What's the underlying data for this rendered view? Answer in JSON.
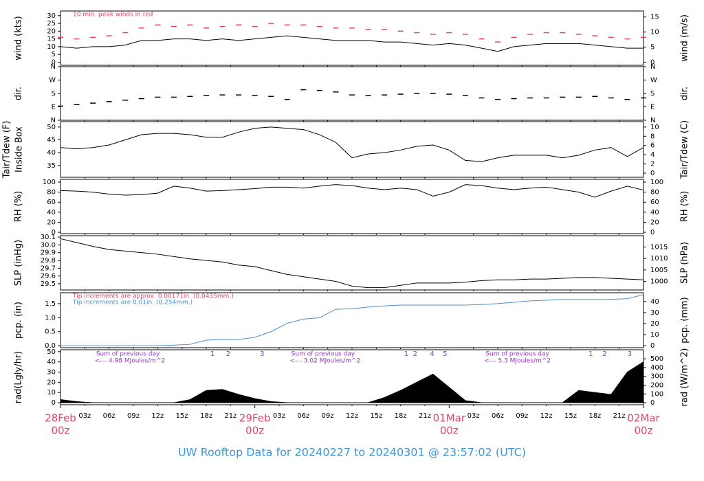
{
  "chart_data": {
    "type": "line",
    "title": "UW Rooftop Data for 20240227  to  20240301 @ 23:57:02  (UTC)",
    "x": [
      0,
      2,
      4,
      6,
      8,
      10,
      12,
      14,
      16,
      18,
      20,
      22,
      24,
      26,
      28,
      30,
      32,
      34,
      36,
      38,
      40,
      42,
      44,
      46,
      48,
      50,
      52,
      54,
      56,
      58,
      60,
      62,
      64,
      66,
      68,
      70,
      72
    ],
    "xlim": [
      0,
      72
    ],
    "xticks": [
      {
        "value": 3,
        "label": "03z"
      },
      {
        "value": 6,
        "label": "06z"
      },
      {
        "value": 9,
        "label": "09z"
      },
      {
        "value": 12,
        "label": "12z"
      },
      {
        "value": 15,
        "label": "15z"
      },
      {
        "value": 18,
        "label": "18z"
      },
      {
        "value": 21,
        "label": "21z"
      },
      {
        "value": 27,
        "label": "03z"
      },
      {
        "value": 30,
        "label": "06z"
      },
      {
        "value": 33,
        "label": "09z"
      },
      {
        "value": 36,
        "label": "12z"
      },
      {
        "value": 39,
        "label": "15z"
      },
      {
        "value": 42,
        "label": "18z"
      },
      {
        "value": 45,
        "label": "21z"
      },
      {
        "value": 51,
        "label": "03z"
      },
      {
        "value": 54,
        "label": "06z"
      },
      {
        "value": 57,
        "label": "09z"
      },
      {
        "value": 60,
        "label": "12z"
      },
      {
        "value": 63,
        "label": "15z"
      },
      {
        "value": 66,
        "label": "18z"
      },
      {
        "value": 69,
        "label": "21z"
      }
    ],
    "day_ticks": [
      {
        "value": 0,
        "label": "28Feb",
        "sub": "00z"
      },
      {
        "value": 24,
        "label": "29Feb",
        "sub": "00z"
      },
      {
        "value": 48,
        "label": "01Mar",
        "sub": "00z"
      },
      {
        "value": 72,
        "label": "02Mar",
        "sub": "00z"
      }
    ],
    "panels": [
      {
        "ylabel": "wind (kts)",
        "y2label": "wind (m/s)",
        "ylim": [
          -2,
          33
        ],
        "yticks": [
          0,
          5,
          10,
          15,
          20,
          25,
          30
        ],
        "y2lim": [
          -1.03,
          16.98
        ],
        "y2ticks": [
          0,
          5,
          10,
          15
        ],
        "series": [
          {
            "style": "dash",
            "color": "#e0436a",
            "values": [
              16,
              15,
              16,
              17,
              19,
              22,
              24,
              23,
              24,
              22,
              23,
              24,
              23,
              25,
              24,
              24,
              23,
              22,
              22,
              21,
              21,
              20,
              19,
              18,
              19,
              18,
              15,
              13,
              16,
              18,
              19,
              19,
              18,
              17,
              16,
              15,
              16
            ]
          },
          {
            "style": "line",
            "color": "#000000",
            "values": [
              10,
              9,
              10,
              10,
              11,
              14,
              14,
              15,
              15,
              14,
              15,
              14,
              15,
              16,
              17,
              16,
              15,
              14,
              14,
              14,
              13,
              13,
              12,
              11,
              12,
              11,
              9,
              7,
              10,
              11,
              12,
              12,
              12,
              11,
              10,
              9,
              9
            ]
          }
        ],
        "annotations": [
          {
            "text": "10 min. peak winds in red",
            "color": "#e0436a"
          }
        ]
      },
      {
        "ylabel": "dir.",
        "y2label": "dir.",
        "ylim": [
          0,
          360
        ],
        "yticks": [
          {
            "value": 0,
            "label": "N"
          },
          {
            "value": 90,
            "label": "E"
          },
          {
            "value": 180,
            "label": "S"
          },
          {
            "value": 270,
            "label": "W"
          },
          {
            "value": 360,
            "label": "N"
          }
        ],
        "y2lim": [
          0,
          360
        ],
        "y2ticks": [
          {
            "value": 0,
            "label": "N"
          },
          {
            "value": 90,
            "label": "E"
          },
          {
            "value": 180,
            "label": "S"
          },
          {
            "value": 270,
            "label": "W"
          },
          {
            "value": 360,
            "label": "N"
          }
        ],
        "series": [
          {
            "style": "dash",
            "color": "#000000",
            "values": [
              95,
              105,
              115,
              125,
              135,
              145,
              155,
              155,
              160,
              165,
              170,
              170,
              165,
              160,
              140,
              205,
              200,
              190,
              170,
              165,
              170,
              175,
              180,
              180,
              175,
              165,
              150,
              140,
              145,
              150,
              150,
              155,
              155,
              160,
              150,
              140,
              150
            ]
          }
        ]
      },
      {
        "ylabel": "Tair/Tdew (F)",
        "ylabel_sub": "Inside Box",
        "y2label": "Tair/Tdew (C)",
        "ylim": [
          30.4,
          52.1
        ],
        "yticks": [
          35,
          40,
          45,
          50
        ],
        "y2lim": [
          -0.89,
          11.17
        ],
        "y2ticks": [
          0,
          2,
          4,
          6,
          8,
          10
        ],
        "series": [
          {
            "style": "line",
            "color": "#000000",
            "values": [
              42,
              41.5,
              42,
              43,
              45,
              47,
              47.5,
              47.5,
              47,
              46,
              46,
              48,
              49.5,
              50,
              49.5,
              49,
              47,
              44,
              38,
              39.5,
              40,
              41,
              42.5,
              43,
              41,
              37,
              36.5,
              38,
              39,
              39,
              39,
              38,
              39,
              41,
              42,
              38.5,
              42
            ]
          }
        ]
      },
      {
        "ylabel": "RH (%)",
        "y2label": "RH (%)",
        "ylim": [
          -2.7,
          105.5
        ],
        "yticks": [
          0,
          20,
          40,
          60,
          80,
          100
        ],
        "y2lim": [
          -2.7,
          105.5
        ],
        "y2ticks": [
          0,
          20,
          40,
          60,
          80,
          100
        ],
        "series": [
          {
            "style": "line",
            "color": "#000000",
            "values": [
              83,
              82,
              80,
              76,
              74,
              75,
              78,
              92,
              88,
              82,
              83,
              85,
              87,
              90,
              90,
              88,
              92,
              95,
              93,
              88,
              85,
              88,
              85,
              72,
              80,
              95,
              93,
              88,
              85,
              88,
              90,
              85,
              80,
              70,
              82,
              92,
              84
            ]
          }
        ]
      },
      {
        "ylabel": "SLP (inHg)",
        "y2label": "SLP (hPa)",
        "ylim": [
          29.42,
          30.118
        ],
        "yticks": [
          29.5,
          29.6,
          29.7,
          29.8,
          29.9,
          {
            "value": 30.0,
            "label": "30.0"
          },
          30.1
        ],
        "y2lim": [
          996.3,
          1019.9
        ],
        "y2ticks": [
          1000,
          1005,
          1010,
          1015
        ],
        "series": [
          {
            "style": "line",
            "color": "#000000",
            "values": [
              30.08,
              30.03,
              29.98,
              29.94,
              29.92,
              29.9,
              29.88,
              29.85,
              29.82,
              29.8,
              29.78,
              29.74,
              29.72,
              29.67,
              29.62,
              29.59,
              29.56,
              29.53,
              29.47,
              29.45,
              29.45,
              29.48,
              29.51,
              29.51,
              29.51,
              29.52,
              29.54,
              29.55,
              29.55,
              29.56,
              29.56,
              29.57,
              29.58,
              29.58,
              29.57,
              29.56,
              29.55
            ]
          }
        ]
      },
      {
        "ylabel": "pcp. (in)",
        "y2label": "pcp. (mm)",
        "ylim": [
          -0.07,
          1.89
        ],
        "yticks": [
          {
            "value": 0,
            "label": "0.0"
          },
          0.5,
          {
            "value": 1,
            "label": "1.0"
          },
          1.5
        ],
        "y2lim": [
          -1.8,
          48.0
        ],
        "y2ticks": [
          0,
          10,
          20,
          30,
          40
        ],
        "series": [
          {
            "style": "line",
            "color": "#4a8fd0",
            "values": [
              0,
              0,
              0,
              0,
              0,
              0,
              0,
              0.02,
              0.05,
              0.2,
              0.22,
              0.22,
              0.3,
              0.5,
              0.8,
              0.95,
              1.0,
              1.3,
              1.32,
              1.38,
              1.42,
              1.45,
              1.45,
              1.45,
              1.45,
              1.45,
              1.47,
              1.5,
              1.55,
              1.6,
              1.62,
              1.65,
              1.65,
              1.65,
              1.65,
              1.68,
              1.82
            ]
          }
        ],
        "annotations": [
          {
            "text": "Tip increments are approx. 0.00171in. (0.0435mm.)",
            "color": "#e0436a"
          },
          {
            "text": "Tip increments are 0.01in. (0.254mm.)",
            "color": "#4a8fd0"
          }
        ]
      },
      {
        "ylabel": "rad(Lgly/hr)",
        "y2label": "rad (W/m^2)",
        "ylim": [
          -2,
          51.9
        ],
        "yticks": [
          0,
          10,
          20,
          30,
          40,
          50
        ],
        "y2lim": [
          -23.3,
          603.6
        ],
        "y2ticks": [
          0,
          100,
          200,
          300,
          400,
          500
        ],
        "series": [
          {
            "style": "area",
            "color": "#000000",
            "values": [
              3,
              1,
              0,
              0,
              0,
              0,
              0,
              0,
              3,
              12,
              13,
              8,
              4,
              1,
              0,
              0,
              0,
              0,
              0,
              0,
              5,
              12,
              20,
              28,
              15,
              2,
              0,
              0,
              0,
              0,
              0,
              0,
              12,
              10,
              8,
              30,
              40
            ]
          }
        ],
        "daily_sums": [
          {
            "x": 4.4,
            "label": "Sum of previous day",
            "value_text": "<--- 4.98 MJoules/m^2"
          },
          {
            "x": 28.5,
            "label": "Sum of previous day",
            "value_text": "<--- 3.02 MJoules/m^2"
          },
          {
            "x": 52.5,
            "label": "Sum of previous day",
            "value_text": "<--- 5.3 MJoules/m^2"
          }
        ],
        "markers": [
          {
            "x": 18.8,
            "label": "1"
          },
          {
            "x": 20.7,
            "label": "2"
          },
          {
            "x": 24.9,
            "label": "3"
          },
          {
            "x": 42.7,
            "label": "1"
          },
          {
            "x": 43.8,
            "label": "2"
          },
          {
            "x": 45.9,
            "label": "4"
          },
          {
            "x": 47.5,
            "label": "5"
          },
          {
            "x": 65.5,
            "label": "1"
          },
          {
            "x": 67.2,
            "label": "2"
          },
          {
            "x": 70.3,
            "label": "3"
          }
        ]
      }
    ]
  }
}
